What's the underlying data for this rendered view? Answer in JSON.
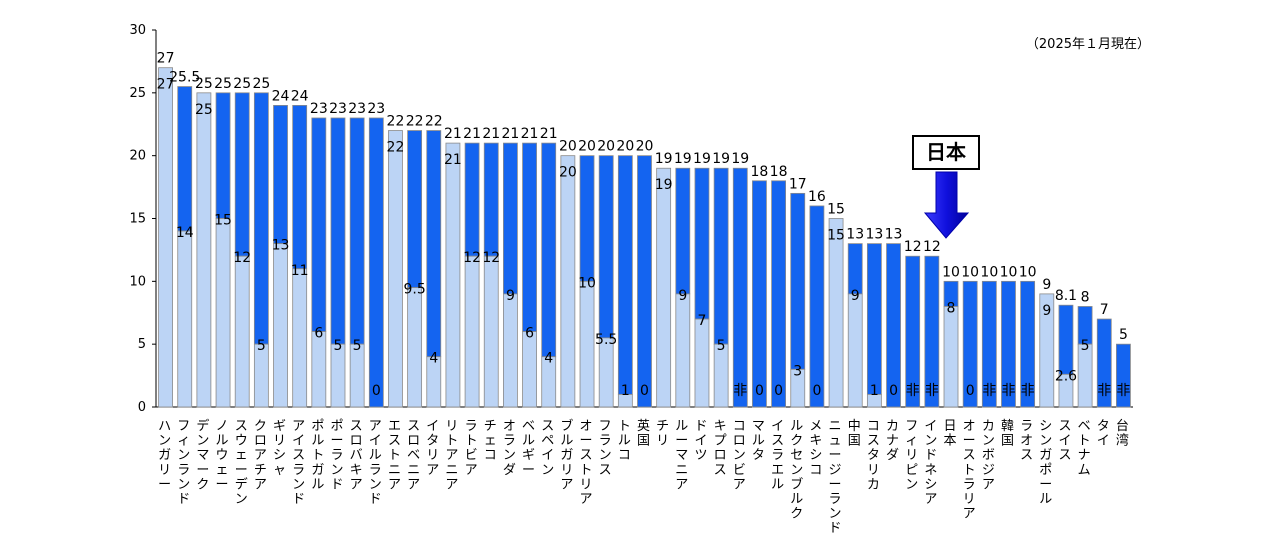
{
  "chart_data": {
    "type": "bar",
    "note": "（2025年１月現在）",
    "ylim": [
      0,
      30
    ],
    "yticks": [
      "0",
      "5",
      "10",
      "15",
      "20",
      "25",
      "30"
    ],
    "categories": [
      "ハンガリー",
      "フィンランド",
      "デンマーク",
      "ノルウェー",
      "スウェーデン",
      "クロアチア",
      "ギリシャ",
      "アイスランド",
      "ポルトガル",
      "ポーランド",
      "スロバキア",
      "アイルランド",
      "エストニア",
      "スロベニア",
      "イタリア",
      "リトアニア",
      "ラトビア",
      "チェコ",
      "オランダ",
      "ベルギー",
      "スペイン",
      "ブルガリア",
      "オーストリア",
      "フランス",
      "トルコ",
      "英国",
      "チリ",
      "ルーマニア",
      "ドイツ",
      "キプロス",
      "コロンビア",
      "マルタ",
      "イスラエル",
      "ルクセンブルク",
      "メキシコ",
      "ニュージーランド",
      "中国",
      "コスタリカ",
      "カナダ",
      "フィリピン",
      "インドネシア",
      "日本",
      "オーストラリア",
      "カンボジア",
      "韓国",
      "ラオス",
      "シンガポール",
      "スイス",
      "ベトナム",
      "タイ",
      "台湾"
    ],
    "series": [
      {
        "values": [
          27,
          25.5,
          25,
          25,
          25,
          25,
          24,
          24,
          23,
          23,
          23,
          23,
          22,
          22,
          22,
          21,
          21,
          21,
          21,
          21,
          21,
          20,
          20,
          20,
          20,
          20,
          19,
          19,
          19,
          19,
          19,
          18,
          18,
          17,
          16,
          15,
          13,
          13,
          13,
          12,
          12,
          10,
          10,
          10,
          10,
          10,
          9,
          8.1,
          8,
          7,
          5
        ]
      },
      {
        "values": [
          "27",
          "14",
          "25",
          "15",
          "12",
          "5",
          "13",
          "11",
          "6",
          "5",
          "5",
          "0",
          "22",
          "9.5",
          "4",
          "21",
          "12",
          "12",
          "9",
          "6",
          "4",
          "20",
          "10",
          "5.5",
          "1",
          "0",
          "19",
          "9",
          "7",
          "5",
          "非",
          "0",
          "0",
          "3",
          "0",
          "15",
          "9",
          "1",
          "0",
          "非",
          "非",
          "8",
          "0",
          "非",
          "非",
          "非",
          "9",
          "2.6",
          "5",
          "非",
          "非"
        ]
      }
    ],
    "colors": {
      "standard": "#1464f0",
      "reduced": "#bcd4f5",
      "frame": "#8a8a8a"
    },
    "highlight": {
      "label": "日本",
      "category": "日本"
    }
  }
}
